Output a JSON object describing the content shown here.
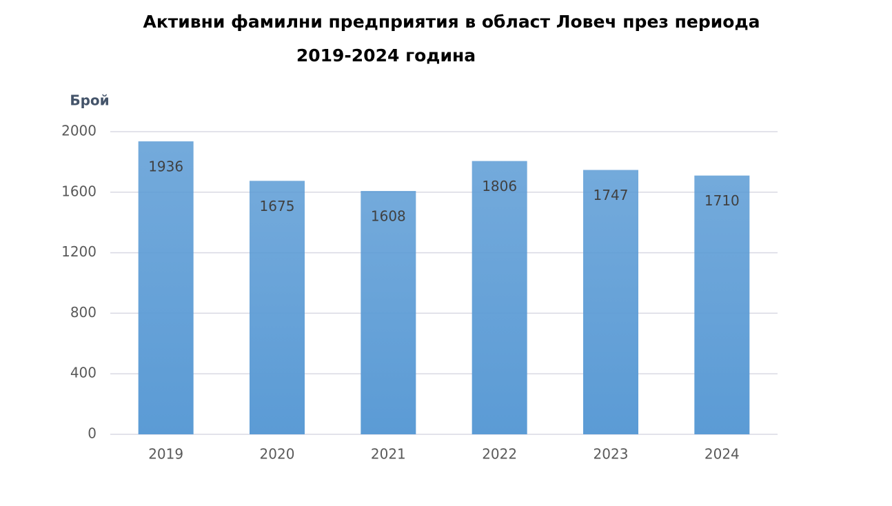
{
  "chart_data": {
    "type": "bar",
    "title": [
      "Активни фамилни предприятия в област Ловеч през периода",
      "2019-2024 година"
    ],
    "y_label": "Брой",
    "categories": [
      "2019",
      "2020",
      "2021",
      "2022",
      "2023",
      "2024"
    ],
    "values": [
      1936,
      1675,
      1608,
      1806,
      1747,
      1710
    ],
    "color": "#5b9bd5",
    "ylim": [
      0,
      2000
    ],
    "yticks": [
      0,
      400,
      800,
      1200,
      1600,
      2000
    ],
    "grid": true
  }
}
